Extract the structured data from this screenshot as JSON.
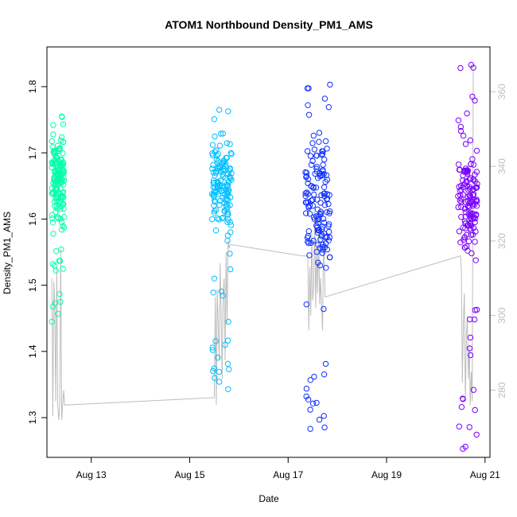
{
  "chart_data": {
    "type": "scatter",
    "title": "ATOM1 Northbound Density_PM1_AMS",
    "xlabel": "Date",
    "ylabel": "Density_PM1_AMS",
    "xlim": [
      12.1,
      21.1
    ],
    "ylim": [
      1.24,
      1.86
    ],
    "x_ticks": [
      {
        "value": 13,
        "label": "Aug 13"
      },
      {
        "value": 15,
        "label": "Aug 15"
      },
      {
        "value": 17,
        "label": "Aug 17"
      },
      {
        "value": 19,
        "label": "Aug 19"
      },
      {
        "value": 21,
        "label": "Aug 21"
      }
    ],
    "y_ticks": [
      1.3,
      1.4,
      1.5,
      1.6,
      1.7,
      1.8
    ],
    "y2_lim": [
      262,
      372
    ],
    "y2_ticks": [
      280,
      300,
      320,
      340,
      360
    ],
    "grid": false,
    "legend": "none",
    "series": [
      {
        "color": "#00ffaa",
        "x_range": [
          12.2,
          12.45
        ],
        "core_range": [
          1.6,
          1.72
        ],
        "y_range": [
          1.44,
          1.755
        ],
        "points": [
          {
            "x": 12.2,
            "y": 1.445
          },
          {
            "x": 12.22,
            "y": 1.532
          },
          {
            "x": 12.4,
            "y": 1.755
          },
          {
            "x": 12.28,
            "y": 1.522
          },
          {
            "x": 12.23,
            "y": 1.742
          }
        ]
      },
      {
        "color": "#00bfff",
        "x_range": [
          15.45,
          15.85
        ],
        "core_range": [
          1.58,
          1.73
        ],
        "y_range": [
          1.34,
          1.765
        ],
        "points": [
          {
            "x": 15.78,
            "y": 1.343
          },
          {
            "x": 15.6,
            "y": 1.765
          },
          {
            "x": 15.72,
            "y": 1.41
          },
          {
            "x": 15.5,
            "y": 1.51
          }
        ]
      },
      {
        "color": "#1030ff",
        "x_range": [
          17.35,
          17.85
        ],
        "core_range": [
          1.52,
          1.72
        ],
        "y_range": [
          1.283,
          1.803
        ],
        "points": [
          {
            "x": 17.45,
            "y": 1.283
          },
          {
            "x": 17.85,
            "y": 1.803
          },
          {
            "x": 17.37,
            "y": 1.332
          },
          {
            "x": 17.45,
            "y": 1.312
          },
          {
            "x": 17.4,
            "y": 1.772
          }
        ]
      },
      {
        "color": "#7a00ff",
        "x_range": [
          20.45,
          20.85
        ],
        "core_range": [
          1.55,
          1.7
        ],
        "y_range": [
          1.253,
          1.833
        ],
        "points": [
          {
            "x": 20.55,
            "y": 1.253
          },
          {
            "x": 20.72,
            "y": 1.833
          },
          {
            "x": 20.5,
            "y": 1.828
          },
          {
            "x": 20.55,
            "y": 1.328
          }
        ]
      }
    ],
    "right_trace": {
      "color": "#bdbdbd",
      "axis": "right",
      "path": [
        [
          12.2,
          310
        ],
        [
          12.22,
          273
        ],
        [
          12.24,
          309
        ],
        [
          12.26,
          302
        ],
        [
          12.28,
          277
        ],
        [
          12.3,
          313
        ],
        [
          12.32,
          276
        ],
        [
          12.34,
          272
        ],
        [
          12.36,
          276
        ],
        [
          12.38,
          318
        ],
        [
          12.4,
          272
        ],
        [
          12.42,
          276
        ],
        [
          12.44,
          280
        ],
        [
          12.46,
          276
        ],
        [
          15.5,
          278
        ],
        [
          15.52,
          305
        ],
        [
          15.54,
          276
        ],
        [
          15.56,
          307
        ],
        [
          15.58,
          297
        ],
        [
          15.6,
          288
        ],
        [
          15.62,
          314
        ],
        [
          15.64,
          300
        ],
        [
          15.66,
          283
        ],
        [
          15.68,
          306
        ],
        [
          15.7,
          310
        ],
        [
          15.72,
          288
        ],
        [
          15.74,
          317
        ],
        [
          15.76,
          298
        ],
        [
          15.78,
          320
        ],
        [
          15.8,
          318
        ],
        [
          15.82,
          319
        ],
        [
          15.85,
          319
        ],
        [
          17.3,
          316
        ],
        [
          17.4,
          316
        ],
        [
          17.42,
          296
        ],
        [
          17.44,
          313
        ],
        [
          17.46,
          300
        ],
        [
          17.48,
          322
        ],
        [
          17.5,
          304
        ],
        [
          17.52,
          308
        ],
        [
          17.54,
          328
        ],
        [
          17.56,
          302
        ],
        [
          17.58,
          318
        ],
        [
          17.6,
          306
        ],
        [
          17.62,
          323
        ],
        [
          17.64,
          303
        ],
        [
          17.66,
          310
        ],
        [
          17.68,
          302
        ],
        [
          17.7,
          296
        ],
        [
          17.72,
          323
        ],
        [
          17.75,
          305
        ],
        [
          20.5,
          316
        ],
        [
          20.52,
          312
        ],
        [
          20.54,
          282
        ],
        [
          20.56,
          298
        ],
        [
          20.58,
          306
        ],
        [
          20.6,
          277
        ],
        [
          20.62,
          294
        ],
        [
          20.64,
          300
        ],
        [
          20.66,
          283
        ],
        [
          20.68,
          292
        ],
        [
          20.7,
          276
        ],
        [
          20.72,
          285
        ],
        [
          20.74,
          277
        ],
        [
          20.76,
          366
        ]
      ]
    }
  }
}
